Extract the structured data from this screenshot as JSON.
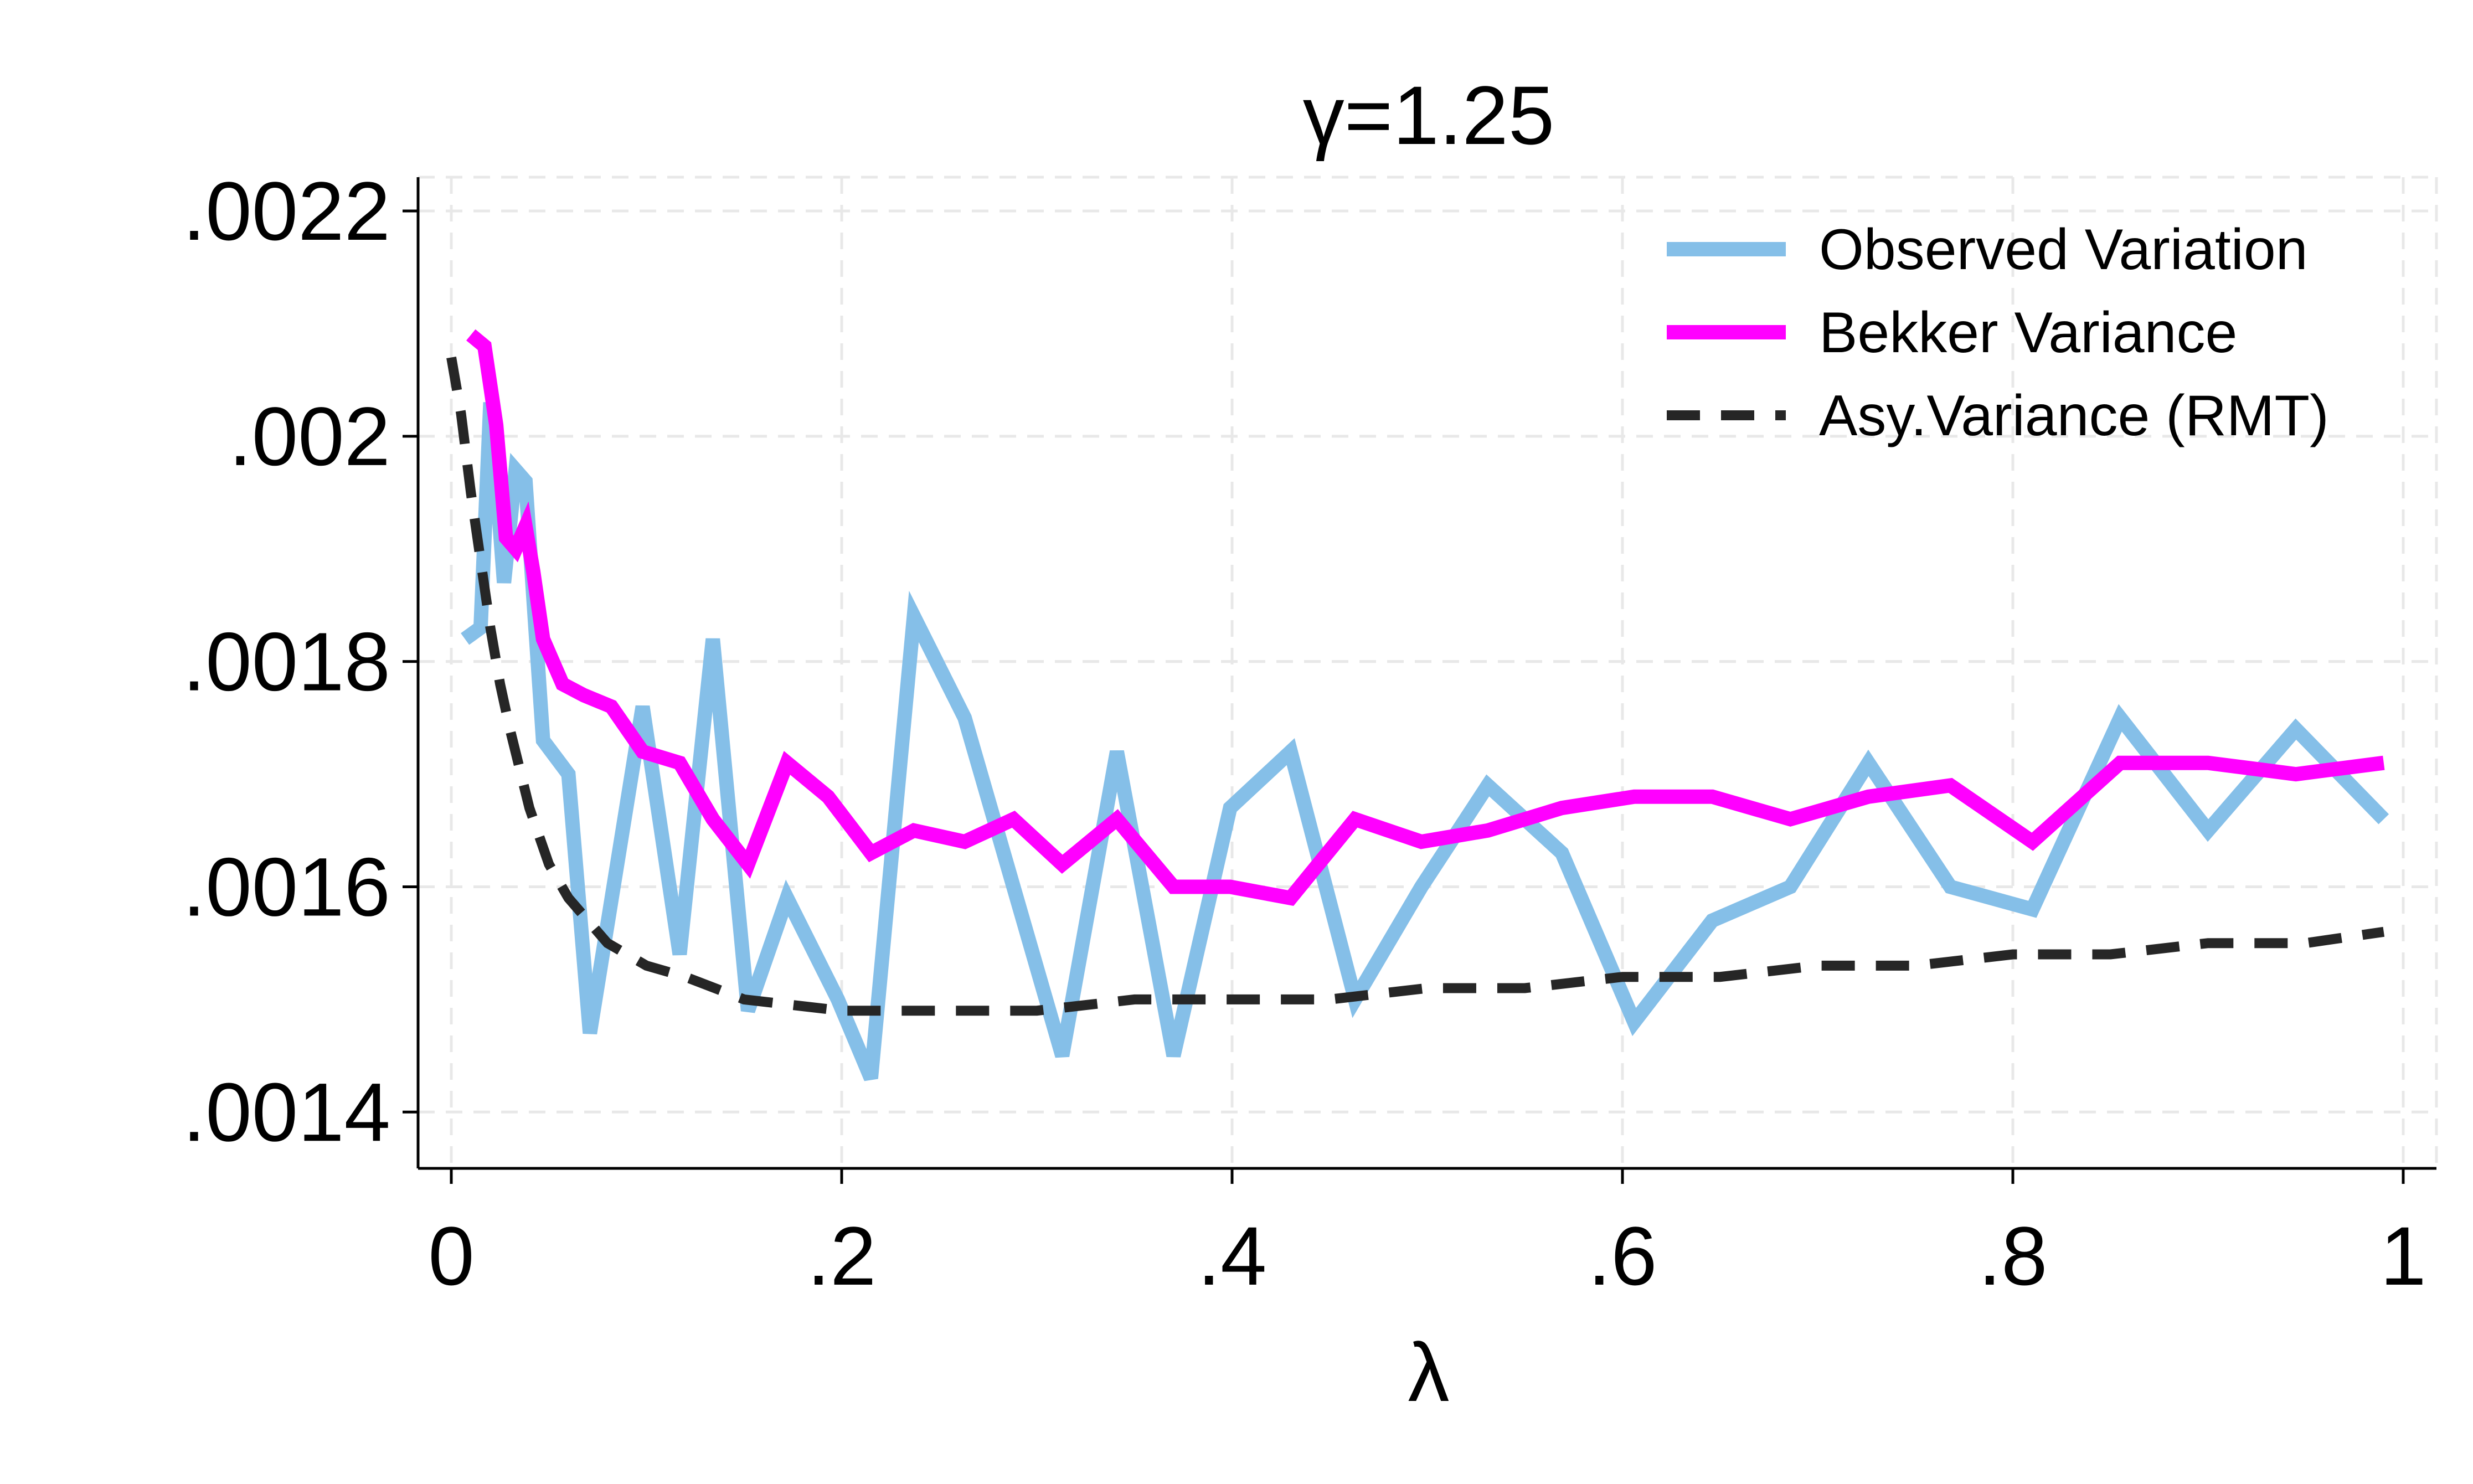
{
  "chart_data": {
    "type": "line",
    "title": "γ=1.25",
    "xlabel": "λ",
    "ylabel": "",
    "xlim": [
      0,
      1
    ],
    "ylim": [
      0.00135,
      0.00223
    ],
    "x_ticks": [
      0,
      0.2,
      0.4,
      0.6,
      0.8,
      1
    ],
    "x_tick_labels": [
      "0",
      ".2",
      ".4",
      ".6",
      ".8",
      "1"
    ],
    "y_ticks": [
      0.0014,
      0.0016,
      0.0018,
      0.002,
      0.0022
    ],
    "y_tick_labels": [
      ".0014",
      ".0016",
      ".0018",
      ".002",
      ".0022"
    ],
    "grid": true,
    "legend_position": "top-right",
    "series": [
      {
        "name": "Observed Variation",
        "color": "#85bfe8",
        "style": "solid",
        "x": [
          0.007,
          0.015,
          0.02,
          0.027,
          0.033,
          0.038,
          0.047,
          0.06,
          0.071,
          0.098,
          0.117,
          0.134,
          0.152,
          0.172,
          0.198,
          0.215,
          0.237,
          0.263,
          0.288,
          0.313,
          0.341,
          0.37,
          0.399,
          0.43,
          0.463,
          0.497,
          0.531,
          0.569,
          0.606,
          0.646,
          0.686,
          0.726,
          0.768,
          0.81,
          0.855,
          0.9,
          0.945,
          0.99
        ],
        "y": [
          0.00182,
          0.00183,
          0.00203,
          0.00187,
          0.00197,
          0.00196,
          0.00173,
          0.0017,
          0.00147,
          0.00176,
          0.00154,
          0.00182,
          0.00149,
          0.00159,
          0.0015,
          0.00143,
          0.00184,
          0.00175,
          0.0016,
          0.00145,
          0.00172,
          0.00145,
          0.00167,
          0.00172,
          0.0015,
          0.0016,
          0.00169,
          0.00163,
          0.00148,
          0.00157,
          0.0016,
          0.00171,
          0.0016,
          0.00158,
          0.00175,
          0.00165,
          0.00174,
          0.00166
        ]
      },
      {
        "name": "Bekker Variance",
        "color": "#ff00ff",
        "style": "solid",
        "x": [
          0.01,
          0.017,
          0.023,
          0.028,
          0.033,
          0.038,
          0.042,
          0.047,
          0.057,
          0.068,
          0.082,
          0.098,
          0.117,
          0.134,
          0.152,
          0.172,
          0.193,
          0.215,
          0.237,
          0.263,
          0.288,
          0.313,
          0.341,
          0.37,
          0.399,
          0.43,
          0.463,
          0.497,
          0.531,
          0.569,
          0.606,
          0.646,
          0.686,
          0.726,
          0.768,
          0.81,
          0.855,
          0.9,
          0.945,
          0.99
        ],
        "y": [
          0.00209,
          0.00208,
          0.00201,
          0.00191,
          0.0019,
          0.00192,
          0.00188,
          0.00182,
          0.00178,
          0.00177,
          0.00176,
          0.00172,
          0.00171,
          0.00166,
          0.00162,
          0.00171,
          0.00168,
          0.00163,
          0.00165,
          0.00164,
          0.00166,
          0.00162,
          0.00166,
          0.0016,
          0.0016,
          0.00159,
          0.00166,
          0.00164,
          0.00165,
          0.00167,
          0.00168,
          0.00168,
          0.00166,
          0.00168,
          0.00169,
          0.00164,
          0.00171,
          0.00171,
          0.0017,
          0.00171
        ]
      },
      {
        "name": "Asy.Variance (RMT)",
        "color": "#262626",
        "style": "dashed",
        "x": [
          0,
          0.005,
          0.01,
          0.015,
          0.02,
          0.025,
          0.03,
          0.04,
          0.05,
          0.06,
          0.07,
          0.08,
          0.1,
          0.12,
          0.15,
          0.2,
          0.25,
          0.3,
          0.35,
          0.4,
          0.45,
          0.5,
          0.55,
          0.6,
          0.65,
          0.7,
          0.75,
          0.8,
          0.85,
          0.9,
          0.95,
          0.99
        ],
        "y": [
          0.00207,
          0.00202,
          0.00195,
          0.00189,
          0.00183,
          0.00178,
          0.00174,
          0.00167,
          0.00162,
          0.00159,
          0.00157,
          0.00155,
          0.00153,
          0.00152,
          0.0015,
          0.00149,
          0.00149,
          0.00149,
          0.0015,
          0.0015,
          0.0015,
          0.00151,
          0.00151,
          0.00152,
          0.00152,
          0.00153,
          0.00153,
          0.00154,
          0.00154,
          0.00155,
          0.00155,
          0.00156
        ]
      }
    ]
  }
}
